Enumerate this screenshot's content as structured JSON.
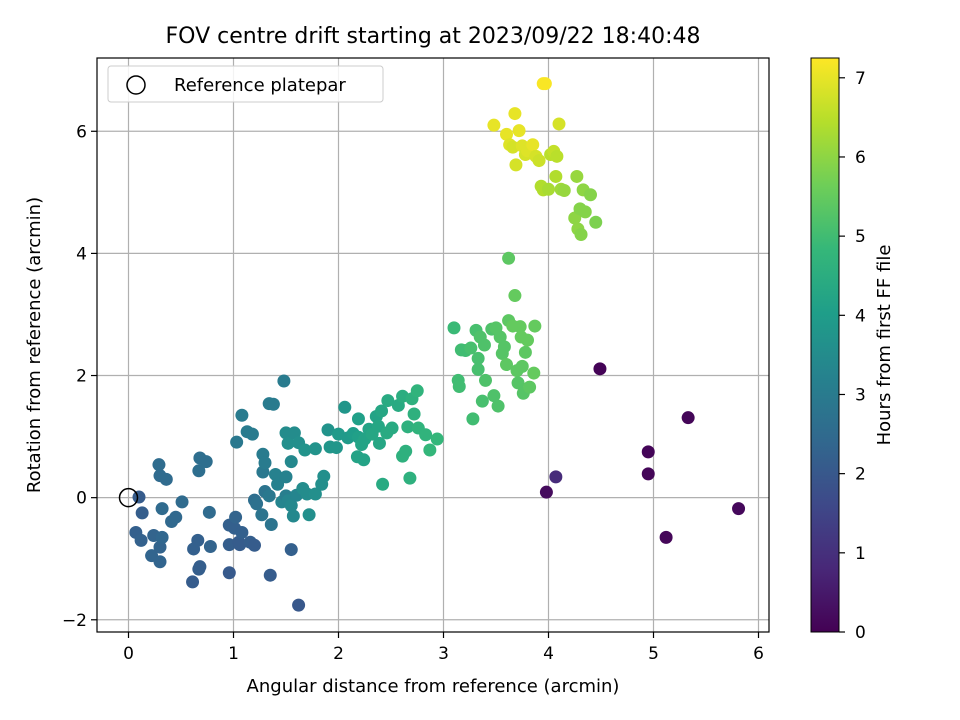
{
  "chart_data": {
    "type": "scatter",
    "title": "FOV centre drift starting at 2023/09/22 18:40:48",
    "xlabel": "Angular distance from reference (arcmin)",
    "ylabel": "Rotation from reference (arcmin)",
    "xlim": [
      -0.3,
      6.1
    ],
    "ylim": [
      -2.2,
      7.2
    ],
    "xticks": [
      0,
      1,
      2,
      3,
      4,
      5,
      6
    ],
    "yticks": [
      -2,
      0,
      2,
      4,
      6
    ],
    "grid": true,
    "legend": {
      "placement": "top-left",
      "entries": [
        "Reference platepar"
      ]
    },
    "reference_point": {
      "x": 0,
      "y": 0
    },
    "colorbar": {
      "label": "Hours from first FF file",
      "colormap": "viridis",
      "range": [
        0,
        7.25
      ],
      "ticks": [
        0,
        1,
        2,
        3,
        4,
        5,
        6,
        7
      ]
    },
    "colors": {
      "viridis_stops": [
        "#440154",
        "#482878",
        "#3e4989",
        "#31688e",
        "#26828e",
        "#1f9e89",
        "#35b779",
        "#6ece58",
        "#b5de2b",
        "#fde725"
      ]
    },
    "points": [
      [
        4.49,
        2.11,
        0.05
      ],
      [
        4.95,
        0.75,
        0.08
      ],
      [
        4.95,
        0.39,
        0.1
      ],
      [
        5.33,
        1.31,
        0.1
      ],
      [
        5.12,
        -0.65,
        0.12
      ],
      [
        5.81,
        -0.18,
        0.15
      ],
      [
        3.98,
        0.09,
        0.2
      ],
      [
        4.07,
        0.34,
        0.9
      ],
      [
        0.1,
        0.01,
        2.1
      ],
      [
        0.13,
        -0.25,
        2.15
      ],
      [
        0.07,
        -0.57,
        2.2
      ],
      [
        0.12,
        -0.7,
        2.25
      ],
      [
        0.24,
        -0.62,
        2.3
      ],
      [
        0.22,
        -0.95,
        2.35
      ],
      [
        0.3,
        -0.81,
        2.3
      ],
      [
        0.3,
        -1.05,
        2.35
      ],
      [
        0.32,
        -0.65,
        2.4
      ],
      [
        0.3,
        0.36,
        2.5
      ],
      [
        0.29,
        0.54,
        2.55
      ],
      [
        0.32,
        -0.18,
        2.5
      ],
      [
        0.36,
        0.3,
        2.5
      ],
      [
        0.41,
        -0.39,
        2.45
      ],
      [
        0.45,
        -0.32,
        2.45
      ],
      [
        0.51,
        -0.07,
        2.5
      ],
      [
        0.62,
        -0.84,
        2.2
      ],
      [
        0.61,
        -1.38,
        2.1
      ],
      [
        0.66,
        -0.7,
        2.2
      ],
      [
        0.67,
        -1.17,
        2.15
      ],
      [
        0.68,
        -1.13,
        2.15
      ],
      [
        0.67,
        0.44,
        2.6
      ],
      [
        0.68,
        0.65,
        2.6
      ],
      [
        0.74,
        0.59,
        2.6
      ],
      [
        0.77,
        -0.24,
        2.5
      ],
      [
        0.78,
        -0.8,
        2.3
      ],
      [
        0.96,
        -0.45,
        2.2
      ],
      [
        0.96,
        -1.23,
        2.05
      ],
      [
        0.96,
        -0.77,
        2.15
      ],
      [
        1.01,
        -0.5,
        2.2
      ],
      [
        1.02,
        -0.32,
        2.3
      ],
      [
        1.05,
        -0.73,
        2.1
      ],
      [
        1.06,
        -0.77,
        2.1
      ],
      [
        1.08,
        -0.57,
        2.2
      ],
      [
        1.03,
        0.91,
        2.9
      ],
      [
        1.08,
        1.35,
        3.0
      ],
      [
        1.13,
        1.08,
        3.0
      ],
      [
        1.18,
        1.04,
        3.0
      ],
      [
        1.16,
        -0.73,
        2.15
      ],
      [
        1.2,
        -0.78,
        2.1
      ],
      [
        1.2,
        -0.04,
        2.6
      ],
      [
        1.22,
        -0.1,
        2.7
      ],
      [
        1.27,
        -0.28,
        2.8
      ],
      [
        1.28,
        0.42,
        2.9
      ],
      [
        1.28,
        0.71,
        3.0
      ],
      [
        1.3,
        0.57,
        3.0
      ],
      [
        1.34,
        1.54,
        3.0
      ],
      [
        1.38,
        1.53,
        3.0
      ],
      [
        1.35,
        -1.27,
        2.1
      ],
      [
        1.3,
        0.1,
        2.8
      ],
      [
        1.34,
        0.03,
        2.9
      ],
      [
        1.36,
        -0.44,
        2.8
      ],
      [
        1.4,
        0.38,
        3.2
      ],
      [
        1.42,
        0.22,
        3.2
      ],
      [
        1.46,
        -0.07,
        3.3
      ],
      [
        1.48,
        1.91,
        3.0
      ],
      [
        1.5,
        1.06,
        3.5
      ],
      [
        1.52,
        0.89,
        3.6
      ],
      [
        1.55,
        0.59,
        3.4
      ],
      [
        1.58,
        1.06,
        3.5
      ],
      [
        1.5,
        0.03,
        3.1
      ],
      [
        1.55,
        -0.85,
        2.2
      ],
      [
        1.5,
        0.34,
        3.2
      ],
      [
        1.52,
        -0.05,
        3.3
      ],
      [
        1.55,
        -0.13,
        3.4
      ],
      [
        1.57,
        -0.3,
        3.4
      ],
      [
        1.6,
        0.04,
        3.3
      ],
      [
        1.62,
        0.9,
        3.6
      ],
      [
        1.62,
        -1.76,
        2.0
      ],
      [
        1.66,
        0.15,
        3.5
      ],
      [
        1.68,
        0.78,
        3.7
      ],
      [
        1.72,
        -0.28,
        3.6
      ],
      [
        1.7,
        0.06,
        3.5
      ],
      [
        1.78,
        0.06,
        3.6
      ],
      [
        1.78,
        0.8,
        3.7
      ],
      [
        1.84,
        0.22,
        3.6
      ],
      [
        1.86,
        0.35,
        3.6
      ],
      [
        1.9,
        1.11,
        3.7
      ],
      [
        1.92,
        0.83,
        3.8
      ],
      [
        1.98,
        0.82,
        3.8
      ],
      [
        2.0,
        1.04,
        3.9
      ],
      [
        2.06,
        1.48,
        3.8
      ],
      [
        2.09,
        0.98,
        3.9
      ],
      [
        2.14,
        1.05,
        4.0
      ],
      [
        2.19,
        1.29,
        4.1
      ],
      [
        2.19,
        0.99,
        4.1
      ],
      [
        2.18,
        0.67,
        4.2
      ],
      [
        2.22,
        0.87,
        4.2
      ],
      [
        2.24,
        0.62,
        4.2
      ],
      [
        2.25,
        0.96,
        4.2
      ],
      [
        2.29,
        1.12,
        4.2
      ],
      [
        2.32,
        1.04,
        4.3
      ],
      [
        2.36,
        1.33,
        4.2
      ],
      [
        2.38,
        1.17,
        4.3
      ],
      [
        2.39,
        0.89,
        4.3
      ],
      [
        2.41,
        1.42,
        4.3
      ],
      [
        2.42,
        0.22,
        4.4
      ],
      [
        2.46,
        1.06,
        4.4
      ],
      [
        2.47,
        1.59,
        4.4
      ],
      [
        2.51,
        1.14,
        4.4
      ],
      [
        2.57,
        1.51,
        4.4
      ],
      [
        2.61,
        1.66,
        4.5
      ],
      [
        2.61,
        0.68,
        4.6
      ],
      [
        2.64,
        0.76,
        4.6
      ],
      [
        2.66,
        1.16,
        4.6
      ],
      [
        2.68,
        0.32,
        4.6
      ],
      [
        2.7,
        1.62,
        4.6
      ],
      [
        2.72,
        1.37,
        4.6
      ],
      [
        2.75,
        1.75,
        4.7
      ],
      [
        2.76,
        1.14,
        4.7
      ],
      [
        2.83,
        1.03,
        4.7
      ],
      [
        2.87,
        0.78,
        4.8
      ],
      [
        2.94,
        0.96,
        4.8
      ],
      [
        3.1,
        2.78,
        4.9
      ],
      [
        3.14,
        1.92,
        5.0
      ],
      [
        3.15,
        1.82,
        5.0
      ],
      [
        3.17,
        2.42,
        5.0
      ],
      [
        3.21,
        2.41,
        5.0
      ],
      [
        3.26,
        2.45,
        5.1
      ],
      [
        3.28,
        1.29,
        5.0
      ],
      [
        3.31,
        2.74,
        5.1
      ],
      [
        3.33,
        2.28,
        5.1
      ],
      [
        3.33,
        2.1,
        5.1
      ],
      [
        3.35,
        2.63,
        5.2
      ],
      [
        3.37,
        1.58,
        5.1
      ],
      [
        3.39,
        2.5,
        5.2
      ],
      [
        3.4,
        1.92,
        5.2
      ],
      [
        3.46,
        2.76,
        5.2
      ],
      [
        3.48,
        1.67,
        5.2
      ],
      [
        3.5,
        2.78,
        5.3
      ],
      [
        3.52,
        1.5,
        5.2
      ],
      [
        3.54,
        2.63,
        5.3
      ],
      [
        3.56,
        2.36,
        5.3
      ],
      [
        3.58,
        2.47,
        5.3
      ],
      [
        3.6,
        2.18,
        5.4
      ],
      [
        3.62,
        3.92,
        5.4
      ],
      [
        3.62,
        2.9,
        5.4
      ],
      [
        3.66,
        2.81,
        5.5
      ],
      [
        3.68,
        3.31,
        5.5
      ],
      [
        3.7,
        2.08,
        5.4
      ],
      [
        3.71,
        1.88,
        5.3
      ],
      [
        3.73,
        2.8,
        5.5
      ],
      [
        3.74,
        2.63,
        5.5
      ],
      [
        3.75,
        2.15,
        5.4
      ],
      [
        3.76,
        1.71,
        5.3
      ],
      [
        3.78,
        2.38,
        5.4
      ],
      [
        3.8,
        2.58,
        5.5
      ],
      [
        3.82,
        1.81,
        5.4
      ],
      [
        3.86,
        2.04,
        5.5
      ],
      [
        3.87,
        2.81,
        5.5
      ],
      [
        3.48,
        6.1,
        7.0
      ],
      [
        3.6,
        5.95,
        7.0
      ],
      [
        3.63,
        5.78,
        6.9
      ],
      [
        3.66,
        5.74,
        6.8
      ],
      [
        3.68,
        6.29,
        7.0
      ],
      [
        3.69,
        5.45,
        6.8
      ],
      [
        3.72,
        6.01,
        7.0
      ],
      [
        3.75,
        5.76,
        6.9
      ],
      [
        3.78,
        5.62,
        6.8
      ],
      [
        3.8,
        5.68,
        6.9
      ],
      [
        3.82,
        5.71,
        6.9
      ],
      [
        3.85,
        5.78,
        7.0
      ],
      [
        3.88,
        5.59,
        6.8
      ],
      [
        3.91,
        5.52,
        6.7
      ],
      [
        3.93,
        5.1,
        6.4
      ],
      [
        3.95,
        5.04,
        6.4
      ],
      [
        3.95,
        6.78,
        7.2
      ],
      [
        3.97,
        6.78,
        7.2
      ],
      [
        4.0,
        5.05,
        6.3
      ],
      [
        4.02,
        5.62,
        6.5
      ],
      [
        4.05,
        5.67,
        6.6
      ],
      [
        4.07,
        5.26,
        6.4
      ],
      [
        4.08,
        5.59,
        6.5
      ],
      [
        4.1,
        6.12,
        6.8
      ],
      [
        4.12,
        5.05,
        6.2
      ],
      [
        4.15,
        5.03,
        6.1
      ],
      [
        4.25,
        4.58,
        6.0
      ],
      [
        4.27,
        5.26,
        6.1
      ],
      [
        4.28,
        4.4,
        6.0
      ],
      [
        4.3,
        4.73,
        5.9
      ],
      [
        4.31,
        4.31,
        5.9
      ],
      [
        4.33,
        5.04,
        6.0
      ],
      [
        4.35,
        4.68,
        5.9
      ],
      [
        4.4,
        4.96,
        5.9
      ],
      [
        4.45,
        4.51,
        5.8
      ]
    ]
  }
}
